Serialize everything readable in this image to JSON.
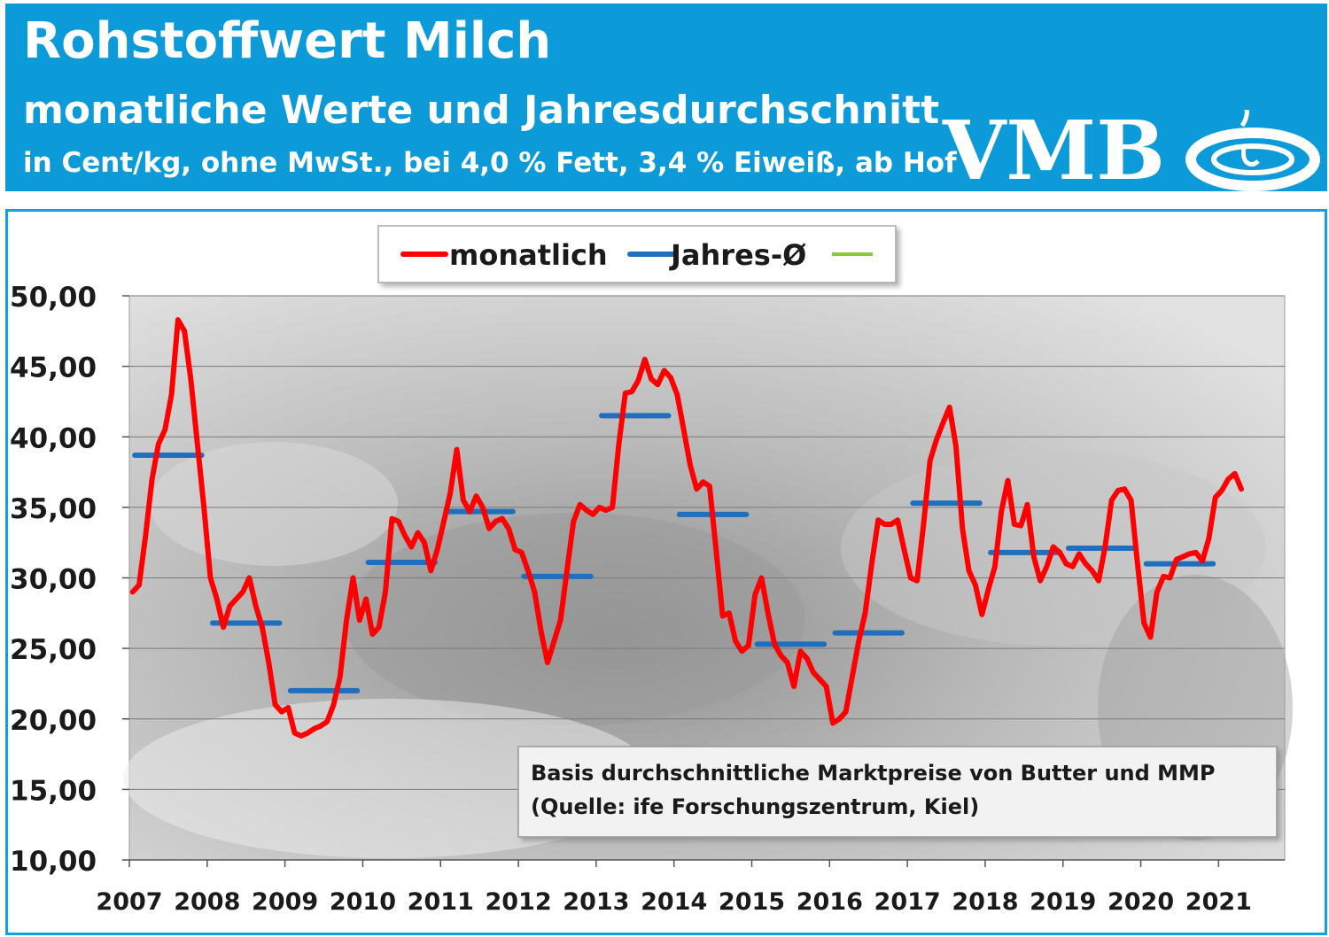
{
  "header": {
    "title": "Rohstoffwert Milch",
    "subtitle": "monatliche Werte und Jahresdurchschnitt",
    "unit_note": "in Cent/kg, ohne MwSt., bei 4,0 % Fett, 3,4 % Eiweiß, ab Hof",
    "logo_text": "VMB",
    "background_color": "#0d9ad9"
  },
  "chart_data": {
    "type": "line",
    "title": "Rohstoffwert Milch",
    "ylim": [
      10,
      50
    ],
    "y_ticks": [
      "10,00",
      "15,00",
      "20,00",
      "25,00",
      "30,00",
      "35,00",
      "40,00",
      "45,00",
      "50,00"
    ],
    "x_ticks": [
      "2007",
      "2008",
      "2009",
      "2010",
      "2011",
      "2012",
      "2013",
      "2014",
      "2015",
      "2016",
      "2017",
      "2018",
      "2019",
      "2020",
      "2021"
    ],
    "grid": true,
    "legend": {
      "position": "top-center",
      "entries": [
        {
          "label": "monatlich",
          "color": "#ff0000"
        },
        {
          "label": "Jahres-Ø",
          "color": "#1f6fbf"
        },
        {
          "label": "",
          "color": "#8dc63f"
        }
      ]
    },
    "annotation": {
      "line1": "Basis durchschnittliche Marktpreise von Butter und MMP",
      "line2": "(Quelle: ife Forschungszentrum, Kiel)"
    },
    "series": [
      {
        "name": "monatlich",
        "color": "#ff0000",
        "start_year": 2007,
        "values": [
          29,
          29.5,
          33,
          37,
          39.5,
          40.5,
          43,
          48.3,
          47.5,
          44,
          39.5,
          35,
          30,
          28.5,
          26.5,
          28,
          28.5,
          29,
          30,
          28,
          26.5,
          24,
          21,
          20.5,
          20.8,
          19,
          18.8,
          19,
          19.3,
          19.5,
          19.8,
          21,
          23,
          27,
          30,
          27,
          28.5,
          26,
          26.5,
          29,
          34.2,
          34,
          33,
          32.2,
          33.2,
          32.5,
          30.5,
          32,
          34,
          36,
          39.1,
          35.5,
          34.7,
          35.8,
          35,
          33.5,
          34,
          34.2,
          33.5,
          32,
          31.8,
          30.5,
          29,
          26.2,
          24,
          25.5,
          27,
          30.5,
          34,
          35.2,
          34.8,
          34.5,
          35,
          34.8,
          35,
          39.5,
          43.1,
          43.2,
          44,
          45.5,
          44.1,
          43.7,
          44.7,
          44.2,
          43,
          40.5,
          38,
          36.3,
          36.8,
          36.5,
          32,
          27.3,
          27.5,
          25.5,
          24.8,
          25.2,
          28.8,
          30,
          27.5,
          25.3,
          24.5,
          24,
          22.3,
          24.8,
          24.3,
          23.3,
          22.8,
          22.3,
          19.7,
          20,
          20.5,
          23,
          25.5,
          27.5,
          31,
          34.1,
          33.8,
          33.8,
          34.1,
          32,
          30,
          29.8,
          33.8,
          38.3,
          39.8,
          41,
          42.1,
          39.3,
          33.5,
          30.5,
          29.5,
          27.4,
          29.2,
          30.8,
          34.7,
          36.9,
          33.8,
          33.7,
          35.2,
          31.5,
          29.8,
          30.8,
          32.2,
          31.8,
          31,
          30.8,
          31.7,
          31,
          30.5,
          29.8,
          32.2,
          35.5,
          36.2,
          36.3,
          35.5,
          31,
          26.8,
          25.8,
          29,
          30.1,
          30,
          31.3,
          31.5,
          31.7,
          31.8,
          31.2,
          32.8,
          35.7,
          36.2,
          37,
          37.4,
          36.3
        ]
      },
      {
        "name": "Jahres-Ø",
        "color": "#1f6fbf",
        "years": [
          2007,
          2008,
          2009,
          2010,
          2011,
          2012,
          2013,
          2014,
          2015,
          2016,
          2017,
          2018,
          2019,
          2020
        ],
        "values": [
          38.7,
          26.8,
          22,
          31.1,
          34.7,
          30.1,
          41.5,
          34.5,
          25.3,
          26.1,
          35.3,
          31.8,
          32.1,
          31
        ]
      }
    ]
  }
}
